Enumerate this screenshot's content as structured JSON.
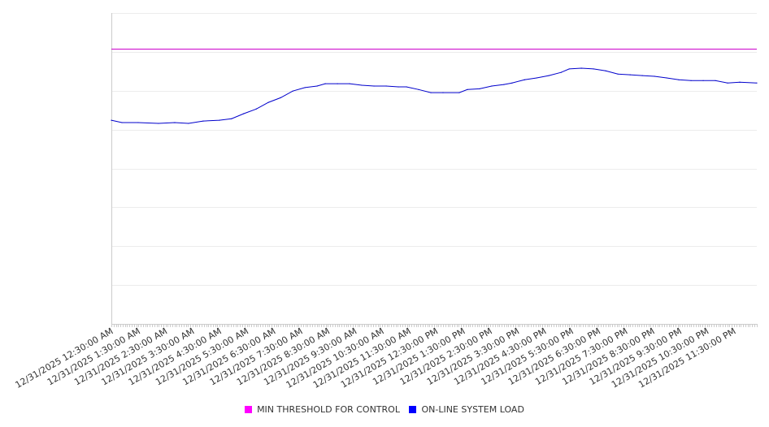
{
  "chart_data": {
    "type": "line",
    "title": "",
    "xlabel": "",
    "ylabel": "",
    "xlim_hours": [
      0.5,
      24.34
    ],
    "ylim": [
      0,
      8
    ],
    "grid": true,
    "legend_position": "bottom-center",
    "tick_labels": [
      "12/31/2025 12:30:00 AM",
      "12/31/2025 1:30:00 AM",
      "12/31/2025 2:30:00 AM",
      "12/31/2025 3:30:00 AM",
      "12/31/2025 4:30:00 AM",
      "12/31/2025 5:30:00 AM",
      "12/31/2025 6:30:00 AM",
      "12/31/2025 7:30:00 AM",
      "12/31/2025 8:30:00 AM",
      "12/31/2025 9:30:00 AM",
      "12/31/2025 10:30:00 AM",
      "12/31/2025 11:30:00 AM",
      "12/31/2025 12:30:00 PM",
      "12/31/2025 1:30:00 PM",
      "12/31/2025 2:30:00 PM",
      "12/31/2025 3:30:00 PM",
      "12/31/2025 4:30:00 PM",
      "12/31/2025 5:30:00 PM",
      "12/31/2025 6:30:00 PM",
      "12/31/2025 7:30:00 PM",
      "12/31/2025 8:30:00 PM",
      "12/31/2025 9:30:00 PM",
      "12/31/2025 10:30:00 PM",
      "12/31/2025 11:30:00 PM"
    ],
    "tick_hours": [
      0.5,
      1.5,
      2.5,
      3.5,
      4.5,
      5.5,
      6.5,
      7.5,
      8.5,
      9.5,
      10.5,
      11.5,
      12.5,
      13.5,
      14.5,
      15.5,
      16.5,
      17.5,
      18.5,
      19.5,
      20.5,
      21.5,
      22.5,
      23.5
    ],
    "series": [
      {
        "name": "MIN THRESHOLD FOR CONTROL",
        "color": "#ff00ff",
        "line_color": "#cc00cc",
        "constant": 7.08
      },
      {
        "name": "ON-LINE SYSTEM LOAD",
        "color": "#0000ff",
        "line_color": "#0000cc",
        "x": [
          0.5,
          0.89,
          1.49,
          2.24,
          2.84,
          3.35,
          3.89,
          4.49,
          4.94,
          5.39,
          5.85,
          6.3,
          6.75,
          7.2,
          7.65,
          8.1,
          8.4,
          8.85,
          9.3,
          9.75,
          10.2,
          10.65,
          11.1,
          11.4,
          11.85,
          12.3,
          12.75,
          13.35,
          13.65,
          14.1,
          14.55,
          15.0,
          15.3,
          15.76,
          16.21,
          16.66,
          17.11,
          17.41,
          17.86,
          18.31,
          18.76,
          19.21,
          19.66,
          20.11,
          20.56,
          21.01,
          21.46,
          21.91,
          22.36,
          22.81,
          23.26,
          23.71,
          24.34
        ],
        "values": [
          5.24,
          5.18,
          5.18,
          5.16,
          5.18,
          5.16,
          5.22,
          5.24,
          5.28,
          5.41,
          5.53,
          5.7,
          5.82,
          5.99,
          6.08,
          6.12,
          6.18,
          6.18,
          6.18,
          6.14,
          6.12,
          6.12,
          6.1,
          6.1,
          6.03,
          5.95,
          5.95,
          5.95,
          6.03,
          6.05,
          6.12,
          6.16,
          6.2,
          6.28,
          6.33,
          6.39,
          6.47,
          6.56,
          6.58,
          6.56,
          6.51,
          6.43,
          6.41,
          6.39,
          6.37,
          6.33,
          6.28,
          6.26,
          6.26,
          6.26,
          6.2,
          6.22,
          6.2
        ]
      }
    ]
  }
}
